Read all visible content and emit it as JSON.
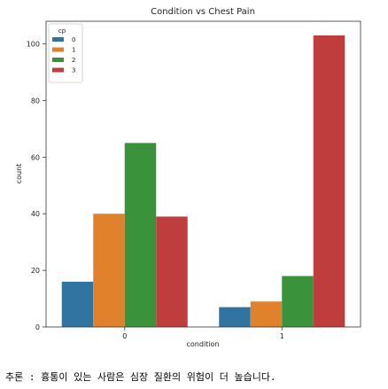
{
  "chart_data": {
    "type": "bar",
    "title": "Condition vs Chest Pain",
    "xlabel": "condition",
    "ylabel": "count",
    "categories": [
      "0",
      "1"
    ],
    "legend": {
      "title": "cp",
      "placement": "top-left"
    },
    "series": [
      {
        "name": "0",
        "values": [
          16,
          7
        ],
        "color": "#3274a1"
      },
      {
        "name": "1",
        "values": [
          40,
          9
        ],
        "color": "#e1812c"
      },
      {
        "name": "2",
        "values": [
          65,
          18
        ],
        "color": "#3a923a"
      },
      {
        "name": "3",
        "values": [
          39,
          103
        ],
        "color": "#c03d3e"
      }
    ],
    "ylim": [
      0,
      108
    ],
    "yticks": [
      0,
      20,
      40,
      60,
      80,
      100
    ],
    "grid": false
  },
  "note": "추론 : 흉통이 있는 사람은 심장 질환의 위험이 더 높습니다."
}
